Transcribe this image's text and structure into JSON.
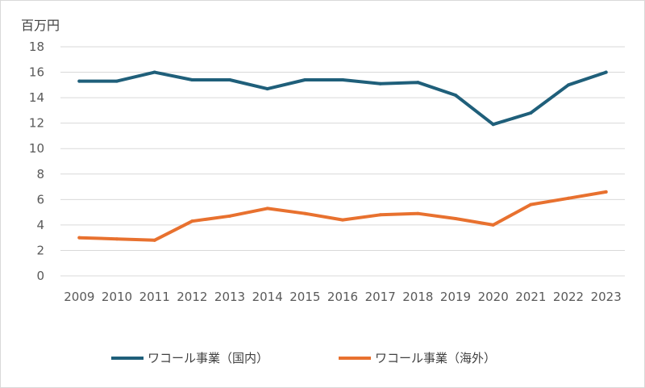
{
  "chart_data": {
    "type": "line",
    "ylabel": "百万円",
    "ylim": [
      0,
      18
    ],
    "yticks": [
      0,
      2,
      4,
      6,
      8,
      10,
      12,
      14,
      16,
      18
    ],
    "categories": [
      "2009",
      "2010",
      "2011",
      "2012",
      "2013",
      "2014",
      "2015",
      "2016",
      "2017",
      "2018",
      "2019",
      "2020",
      "2021",
      "2022",
      "2023"
    ],
    "grid": true,
    "legend_position": "bottom",
    "series": [
      {
        "name": "ワコール事業（国内）",
        "color": "#1f5f7a",
        "values": [
          15.3,
          15.3,
          16.0,
          15.4,
          15.4,
          14.7,
          15.4,
          15.4,
          15.1,
          15.2,
          14.2,
          11.9,
          12.8,
          15.0,
          16.0
        ]
      },
      {
        "name": "ワコール事業（海外）",
        "color": "#e8712f",
        "values": [
          3.0,
          2.9,
          2.8,
          4.3,
          4.7,
          5.3,
          4.9,
          4.4,
          4.8,
          4.9,
          4.5,
          4.0,
          5.6,
          6.1,
          6.6
        ]
      }
    ]
  }
}
